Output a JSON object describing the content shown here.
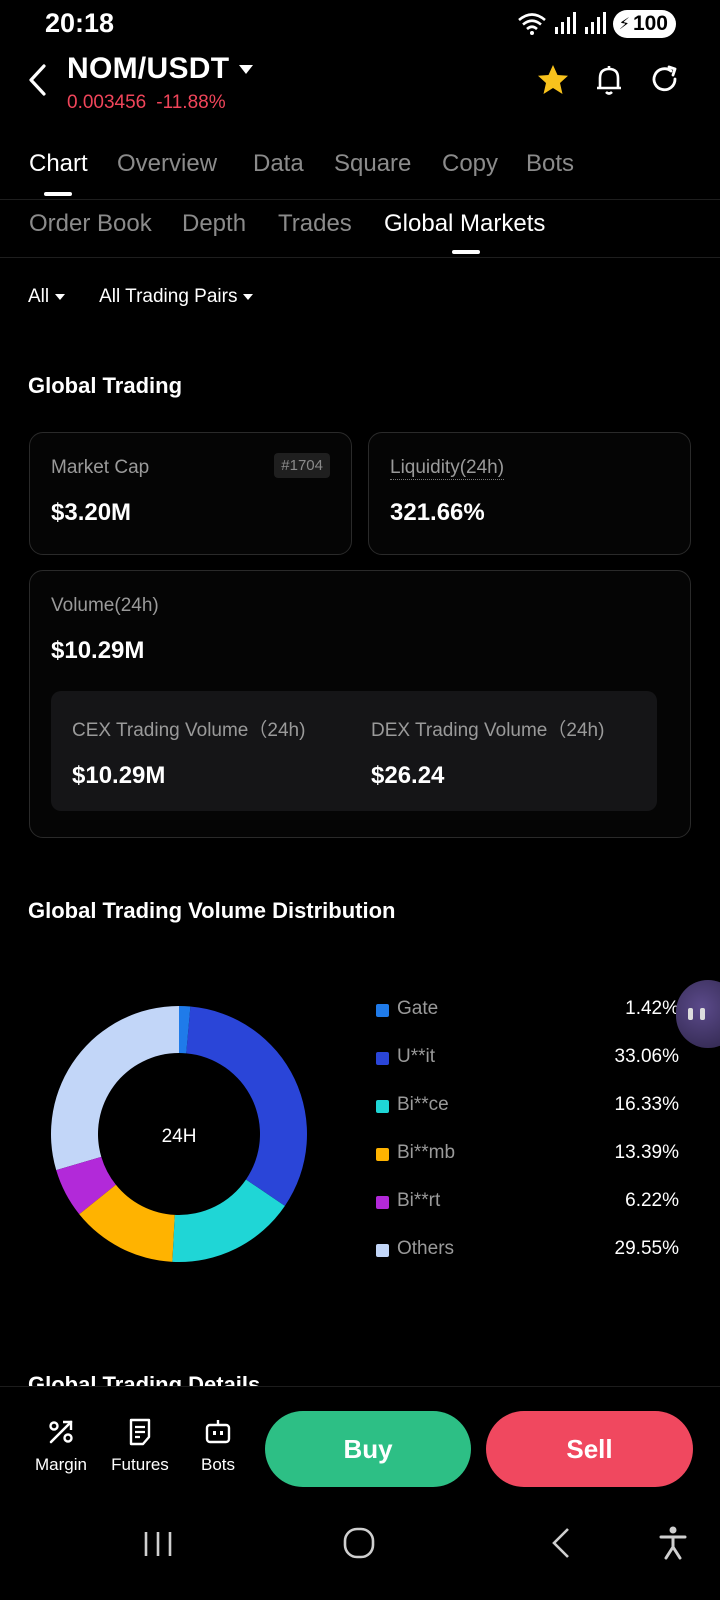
{
  "status": {
    "time": "20:18",
    "battery": "100"
  },
  "header": {
    "pair": "NOM/USDT",
    "price": "0.003456",
    "change": "-11.88%"
  },
  "tabs": [
    "Chart",
    "Overview",
    "Data",
    "Square",
    "Copy",
    "Bots"
  ],
  "subtabs": [
    "Order Book",
    "Depth",
    "Trades",
    "Global Markets"
  ],
  "filters": {
    "scope": "All",
    "pairs": "All Trading Pairs"
  },
  "global_trading": {
    "title": "Global Trading",
    "market_cap_label": "Market Cap",
    "market_cap_rank": "#1704",
    "market_cap_value": "$3.20M",
    "liquidity_label": "Liquidity(24h)",
    "liquidity_value": "321.66%",
    "volume_label": "Volume(24h)",
    "volume_value": "$10.29M",
    "cex_label": "CEX Trading Volume（24h)",
    "cex_value": "$10.29M",
    "dex_label": "DEX Trading Volume（24h)",
    "dex_value": "$26.24"
  },
  "distribution": {
    "title": "Global Trading Volume Distribution",
    "center_label": "24H"
  },
  "chart_data": {
    "type": "pie",
    "title": "Global Trading Volume Distribution",
    "categories": [
      "Gate",
      "U**it",
      "Bi**ce",
      "Bi**mb",
      "Bi**rt",
      "Others"
    ],
    "values": [
      1.42,
      33.06,
      16.33,
      13.39,
      6.22,
      29.55
    ],
    "labels": [
      "1.42%",
      "33.06%",
      "16.33%",
      "13.39%",
      "6.22%",
      "29.55%"
    ],
    "colors": [
      "#1f7bea",
      "#2a45d8",
      "#1fd6d6",
      "#ffb300",
      "#b229d9",
      "#c2d6f8"
    ],
    "legend_position": "right"
  },
  "details_title": "Global Trading Details",
  "actions": {
    "margin": "Margin",
    "futures": "Futures",
    "bots": "Bots",
    "buy": "Buy",
    "sell": "Sell"
  }
}
